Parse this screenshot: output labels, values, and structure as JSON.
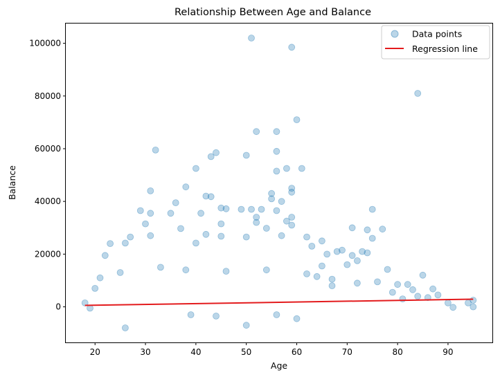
{
  "chart_data": {
    "type": "scatter",
    "title": "Relationship Between Age and Balance",
    "xlabel": "Age",
    "ylabel": "Balance",
    "xlim": [
      14.2,
      98.8
    ],
    "ylim": [
      -13500,
      107500
    ],
    "x_ticks": [
      20,
      30,
      40,
      50,
      60,
      70,
      80,
      90
    ],
    "y_ticks": [
      0,
      20000,
      40000,
      60000,
      80000,
      100000
    ],
    "x_tick_labels": [
      "20",
      "30",
      "40",
      "50",
      "60",
      "70",
      "80",
      "90"
    ],
    "y_tick_labels": [
      "0",
      "20000",
      "40000",
      "60000",
      "80000",
      "100000"
    ],
    "grid": false,
    "legend_position": "top-right",
    "series": [
      {
        "name": "Data points",
        "kind": "scatter",
        "color": "#1f77b4",
        "opacity": 0.3,
        "points": [
          [
            51,
            102000
          ],
          [
            59,
            98500
          ],
          [
            84,
            81000
          ],
          [
            60,
            71000
          ],
          [
            52,
            66500
          ],
          [
            56,
            66500
          ],
          [
            32,
            59500
          ],
          [
            56,
            59000
          ],
          [
            44,
            58500
          ],
          [
            50,
            57500
          ],
          [
            43,
            57000
          ],
          [
            40,
            52500
          ],
          [
            61,
            52500
          ],
          [
            58,
            52500
          ],
          [
            56,
            51500
          ],
          [
            59,
            45000
          ],
          [
            38,
            45500
          ],
          [
            31,
            44000
          ],
          [
            55,
            43000
          ],
          [
            59,
            43500
          ],
          [
            42,
            42000
          ],
          [
            43,
            41800
          ],
          [
            55,
            41000
          ],
          [
            57,
            40000
          ],
          [
            36,
            39500
          ],
          [
            49,
            37000
          ],
          [
            45,
            37500
          ],
          [
            46,
            37200
          ],
          [
            51,
            37000
          ],
          [
            53,
            37000
          ],
          [
            75,
            37000
          ],
          [
            56,
            36500
          ],
          [
            29,
            36500
          ],
          [
            31,
            35500
          ],
          [
            35,
            35500
          ],
          [
            41,
            35500
          ],
          [
            52,
            34000
          ],
          [
            59,
            34000
          ],
          [
            58,
            32500
          ],
          [
            52,
            32000
          ],
          [
            45,
            31500
          ],
          [
            30,
            31500
          ],
          [
            71,
            30000
          ],
          [
            37,
            29700
          ],
          [
            54,
            29800
          ],
          [
            77,
            29500
          ],
          [
            74,
            29200
          ],
          [
            59,
            31000
          ],
          [
            42,
            27500
          ],
          [
            45,
            26800
          ],
          [
            50,
            26500
          ],
          [
            57,
            27000
          ],
          [
            31,
            27000
          ],
          [
            27,
            26500
          ],
          [
            75,
            26000
          ],
          [
            62,
            26500
          ],
          [
            65,
            25000
          ],
          [
            23,
            24000
          ],
          [
            26,
            24200
          ],
          [
            40,
            24200
          ],
          [
            68,
            21000
          ],
          [
            69,
            21500
          ],
          [
            73,
            21000
          ],
          [
            63,
            23000
          ],
          [
            66,
            20000
          ],
          [
            71,
            19500
          ],
          [
            74,
            20500
          ],
          [
            22,
            19500
          ],
          [
            70,
            16000
          ],
          [
            72,
            17500
          ],
          [
            78,
            14200
          ],
          [
            21,
            11000
          ],
          [
            25,
            13000
          ],
          [
            33,
            15000
          ],
          [
            38,
            14000
          ],
          [
            46,
            13500
          ],
          [
            54,
            14000
          ],
          [
            62,
            12500
          ],
          [
            64,
            11500
          ],
          [
            67,
            10500
          ],
          [
            76,
            9500
          ],
          [
            80,
            8500
          ],
          [
            82,
            8500
          ],
          [
            83,
            6500
          ],
          [
            85,
            12000
          ],
          [
            87,
            6800
          ],
          [
            88,
            4500
          ],
          [
            90,
            1500
          ],
          [
            94,
            1500
          ],
          [
            95,
            2500
          ],
          [
            95,
            0
          ],
          [
            91,
            -200
          ],
          [
            86,
            3500
          ],
          [
            20,
            7000
          ],
          [
            26,
            -8000
          ],
          [
            50,
            -7000
          ],
          [
            60,
            -4500
          ],
          [
            44,
            -3500
          ],
          [
            39,
            -3000
          ],
          [
            56,
            -3000
          ],
          [
            19,
            -500
          ],
          [
            18,
            1500
          ],
          [
            65,
            15500
          ],
          [
            79,
            5500
          ],
          [
            81,
            3000
          ],
          [
            84,
            4000
          ],
          [
            72,
            9000
          ],
          [
            67,
            8000
          ]
        ]
      },
      {
        "name": "Regression line",
        "kind": "line",
        "color": "#e31a1c",
        "points": [
          [
            18,
            550
          ],
          [
            95,
            2900
          ]
        ]
      }
    ]
  }
}
